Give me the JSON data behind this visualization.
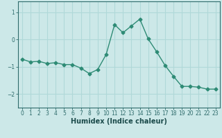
{
  "x": [
    0,
    1,
    2,
    3,
    4,
    5,
    6,
    7,
    8,
    9,
    10,
    11,
    12,
    13,
    14,
    15,
    16,
    17,
    18,
    19,
    20,
    21,
    22,
    23
  ],
  "y": [
    -0.72,
    -0.82,
    -0.8,
    -0.88,
    -0.85,
    -0.92,
    -0.92,
    -1.05,
    -1.25,
    -1.1,
    -0.55,
    0.55,
    0.25,
    0.5,
    0.75,
    0.02,
    -0.45,
    -0.95,
    -1.35,
    -1.72,
    -1.72,
    -1.75,
    -1.82,
    -1.82
  ],
  "line_color": "#2e8b75",
  "marker": "D",
  "markersize": 2.5,
  "linewidth": 1.0,
  "xlabel": "Humidex (Indice chaleur)",
  "xlabel_fontsize": 7,
  "bg_color": "#cce8e8",
  "grid_color": "#b0d8d8",
  "tick_color": "#2e6b6b",
  "label_color": "#1a4a4a",
  "ylim": [
    -2.5,
    1.4
  ],
  "xlim": [
    -0.5,
    23.5
  ],
  "yticks": [
    -2,
    -1,
    0,
    1
  ],
  "xticks": [
    0,
    1,
    2,
    3,
    4,
    5,
    6,
    7,
    8,
    9,
    10,
    11,
    12,
    13,
    14,
    15,
    16,
    17,
    18,
    19,
    20,
    21,
    22,
    23
  ],
  "tick_fontsize": 5.5
}
